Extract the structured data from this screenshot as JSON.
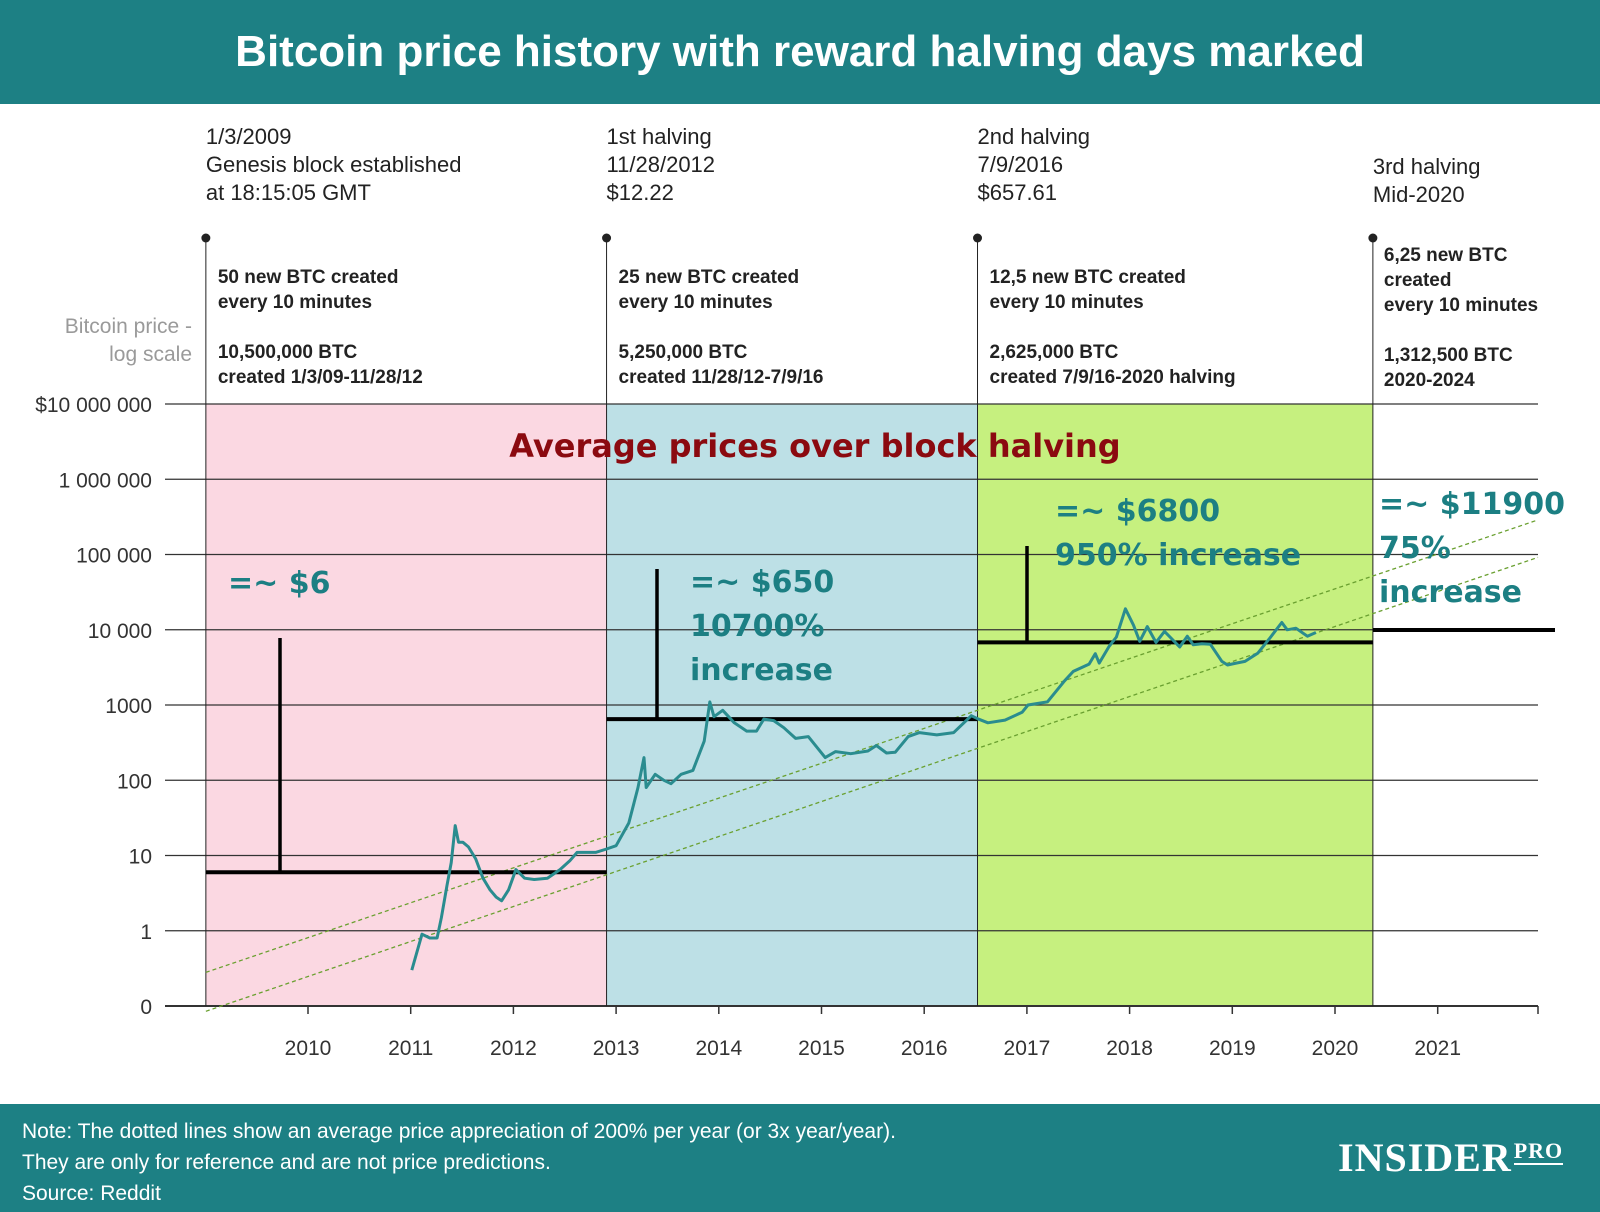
{
  "header": {
    "title": "Bitcoin price history with reward halving days marked"
  },
  "footer": {
    "note_lines": [
      "Note: The dotted lines show an average price appreciation of 200% per year (or 3x year/year).",
      "They are only for reference and are not price predictions.",
      "Source: Reddit"
    ],
    "logo_main": "INSIDER",
    "logo_sub": "PRO"
  },
  "colors": {
    "header_bg": "#1d8084",
    "era1": "#fbd8e2",
    "era2": "#bde0e6",
    "era3": "#c6f07f",
    "price_line": "#2a8c8f",
    "annotation_teal": "#1c7f83",
    "annotation_red": "#8b0a10",
    "trend_dotted": "#6aa030"
  },
  "chart_data": {
    "type": "line",
    "title": "Bitcoin price history with reward halving days marked",
    "ylabel": "Bitcoin price - log scale",
    "yscale": "log",
    "y_ticks": [
      {
        "value": 0.1,
        "label": "0"
      },
      {
        "value": 1,
        "label": "1"
      },
      {
        "value": 10,
        "label": "10"
      },
      {
        "value": 100,
        "label": "100"
      },
      {
        "value": 1000,
        "label": "1000"
      },
      {
        "value": 10000,
        "label": "10 000"
      },
      {
        "value": 100000,
        "label": "100 000"
      },
      {
        "value": 1000000,
        "label": "1 000 000"
      },
      {
        "value": 10000000,
        "label": "$10 000 000"
      }
    ],
    "x_ticks": [
      "2010",
      "2011",
      "2012",
      "2013",
      "2014",
      "2015",
      "2016",
      "2017",
      "2018",
      "2019",
      "2020",
      "2021"
    ],
    "grid": true,
    "series": [
      {
        "points": [
          [
            "2011-01-05",
            0.3
          ],
          [
            "2011-02-10",
            0.9
          ],
          [
            "2011-03-10",
            0.8
          ],
          [
            "2011-04-05",
            0.8
          ],
          [
            "2011-04-20",
            1.5
          ],
          [
            "2011-05-10",
            4
          ],
          [
            "2011-05-25",
            8
          ],
          [
            "2011-06-08",
            25
          ],
          [
            "2011-06-20",
            15
          ],
          [
            "2011-07-05",
            15
          ],
          [
            "2011-07-25",
            13
          ],
          [
            "2011-08-20",
            9
          ],
          [
            "2011-09-15",
            5
          ],
          [
            "2011-10-10",
            3.5
          ],
          [
            "2011-11-01",
            2.8
          ],
          [
            "2011-11-20",
            2.5
          ],
          [
            "2011-12-15",
            3.5
          ],
          [
            "2012-01-10",
            6.5
          ],
          [
            "2012-02-10",
            5
          ],
          [
            "2012-03-15",
            4.8
          ],
          [
            "2012-05-01",
            5
          ],
          [
            "2012-06-15",
            6.5
          ],
          [
            "2012-07-20",
            8.5
          ],
          [
            "2012-08-15",
            11
          ],
          [
            "2012-09-15",
            11
          ],
          [
            "2012-10-20",
            11
          ],
          [
            "2012-11-28",
            12.2
          ],
          [
            "2013-01-01",
            13.5
          ],
          [
            "2013-02-15",
            27
          ],
          [
            "2013-03-20",
            80
          ],
          [
            "2013-04-10",
            200
          ],
          [
            "2013-04-18",
            80
          ],
          [
            "2013-05-20",
            120
          ],
          [
            "2013-06-20",
            100
          ],
          [
            "2013-07-15",
            90
          ],
          [
            "2013-08-20",
            120
          ],
          [
            "2013-10-01",
            135
          ],
          [
            "2013-11-10",
            330
          ],
          [
            "2013-11-30",
            1100
          ],
          [
            "2013-12-15",
            700
          ],
          [
            "2014-01-15",
            850
          ],
          [
            "2014-02-25",
            580
          ],
          [
            "2014-04-10",
            450
          ],
          [
            "2014-05-15",
            450
          ],
          [
            "2014-06-10",
            650
          ],
          [
            "2014-07-15",
            620
          ],
          [
            "2014-08-20",
            500
          ],
          [
            "2014-10-01",
            360
          ],
          [
            "2014-11-15",
            380
          ],
          [
            "2015-01-14",
            200
          ],
          [
            "2015-02-20",
            240
          ],
          [
            "2015-04-15",
            225
          ],
          [
            "2015-06-15",
            245
          ],
          [
            "2015-07-15",
            290
          ],
          [
            "2015-08-20",
            230
          ],
          [
            "2015-09-20",
            235
          ],
          [
            "2015-11-05",
            380
          ],
          [
            "2015-12-15",
            430
          ],
          [
            "2016-02-15",
            400
          ],
          [
            "2016-04-15",
            430
          ],
          [
            "2016-06-17",
            720
          ],
          [
            "2016-07-09",
            657.61
          ],
          [
            "2016-08-15",
            580
          ],
          [
            "2016-10-15",
            630
          ],
          [
            "2016-12-15",
            800
          ],
          [
            "2017-01-05",
            1000
          ],
          [
            "2017-03-15",
            1100
          ],
          [
            "2017-05-15",
            2100
          ],
          [
            "2017-06-15",
            2800
          ],
          [
            "2017-08-10",
            3500
          ],
          [
            "2017-09-01",
            4800
          ],
          [
            "2017-09-15",
            3600
          ],
          [
            "2017-10-20",
            6000
          ],
          [
            "2017-11-15",
            8000
          ],
          [
            "2017-12-17",
            19000
          ],
          [
            "2018-01-15",
            11500
          ],
          [
            "2018-02-06",
            7000
          ],
          [
            "2018-03-05",
            11000
          ],
          [
            "2018-04-05",
            6800
          ],
          [
            "2018-05-05",
            9500
          ],
          [
            "2018-06-28",
            5900
          ],
          [
            "2018-07-25",
            8200
          ],
          [
            "2018-08-15",
            6300
          ],
          [
            "2018-09-15",
            6500
          ],
          [
            "2018-10-15",
            6400
          ],
          [
            "2018-11-25",
            3800
          ],
          [
            "2018-12-15",
            3400
          ],
          [
            "2019-01-15",
            3600
          ],
          [
            "2019-02-15",
            3800
          ],
          [
            "2019-04-02",
            4900
          ],
          [
            "2019-05-15",
            7800
          ],
          [
            "2019-06-26",
            12500
          ],
          [
            "2019-07-15",
            10000
          ],
          [
            "2019-08-15",
            10500
          ],
          [
            "2019-09-25",
            8200
          ],
          [
            "2019-10-25",
            9200
          ]
        ]
      }
    ],
    "trend_lines": [
      {
        "points": [
          [
            "2009-01-03",
            0.28
          ],
          [
            "2024-01-01",
            2500000.0
          ]
        ],
        "style": "dotted"
      },
      {
        "points": [
          [
            "2009-01-03",
            0.085
          ],
          [
            "2024-01-01",
            800000.0
          ]
        ],
        "style": "dotted"
      }
    ],
    "eras": [
      {
        "from": "2009-01-03",
        "to": "2012-11-28",
        "avg_price": 6
      },
      {
        "from": "2012-11-28",
        "to": "2016-07-09",
        "avg_price": 650
      },
      {
        "from": "2016-07-09",
        "to": "2020-05-15",
        "avg_price": 6800
      },
      {
        "from": "2020-05-15",
        "to": "2021-12-31",
        "avg_price": 11900
      }
    ],
    "halving_events": [
      {
        "date": "2009-01-03",
        "lines": [
          "1/3/2009",
          "Genesis block established",
          "at 18:15:05 GMT"
        ],
        "reward_lines": [
          "50 new BTC created",
          "every 10 minutes"
        ],
        "supply_lines": [
          "10,500,000 BTC",
          "created 1/3/09-11/28/12"
        ]
      },
      {
        "date": "2012-11-28",
        "lines": [
          "1st halving",
          "11/28/2012",
          "$12.22"
        ],
        "reward_lines": [
          "25 new BTC created",
          "every 10 minutes"
        ],
        "supply_lines": [
          "5,250,000 BTC",
          "created 11/28/12-7/9/16"
        ]
      },
      {
        "date": "2016-07-09",
        "lines": [
          "2nd halving",
          "7/9/2016",
          "$657.61"
        ],
        "reward_lines": [
          "12,5 new BTC created",
          "every 10 minutes"
        ],
        "supply_lines": [
          "2,625,000 BTC",
          "created 7/9/16-2020 halving"
        ]
      },
      {
        "date": "2020-05-15",
        "lines": [
          "3rd halving",
          "Mid-2020"
        ],
        "reward_lines": [
          "6,25 new BTC",
          "created",
          "every 10 minutes"
        ],
        "supply_lines": [
          "1,312,500 BTC",
          "2020-2024"
        ]
      }
    ],
    "annotations": {
      "banner": "Average prices over block halving",
      "era_labels": [
        [
          "=~ $6"
        ],
        [
          "=~ $650",
          "10700%",
          "increase"
        ],
        [
          "=~ $6800",
          "950% increase"
        ],
        [
          "=~ $11900",
          "75%",
          "increase"
        ]
      ]
    }
  }
}
